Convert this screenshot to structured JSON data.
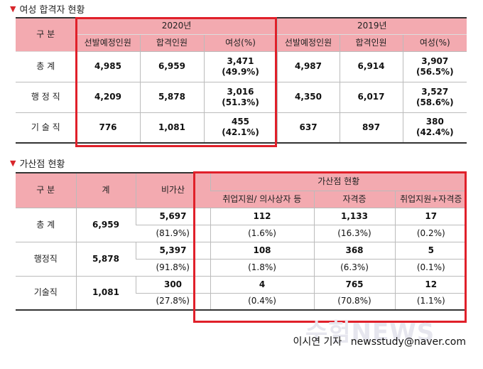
{
  "section1": {
    "title": "여성 합격자 현황",
    "col_group": "구  분",
    "year_2020": "2020년",
    "year_2019": "2019년",
    "sub_headers": [
      "선발예정인원",
      "합격인원",
      "여성(%)"
    ],
    "rows": [
      {
        "label": "총    계",
        "y2020": [
          "4,985",
          "6,959",
          "3,471",
          "(49.9%)"
        ],
        "y2019": [
          "4,987",
          "6,914",
          "3,907",
          "(56.5%)"
        ]
      },
      {
        "label": "행 정 직",
        "y2020": [
          "4,209",
          "5,878",
          "3,016",
          "(51.3%)"
        ],
        "y2019": [
          "4,350",
          "6,017",
          "3,527",
          "(58.6%)"
        ]
      },
      {
        "label": "기 술 직",
        "y2020": [
          "776",
          "1,081",
          "455",
          "(42.1%)"
        ],
        "y2019": [
          "637",
          "897",
          "380",
          "(42.4%)"
        ]
      }
    ]
  },
  "section2": {
    "title": "가산점 현황",
    "col_group": "구  분",
    "col_total": "계",
    "col_non": "비가산",
    "bonus_group": "가산점 현황",
    "bonus_headers": [
      "취업지원/ 의사상자 등",
      "자격증",
      "취업지원+자격증"
    ],
    "rows": [
      {
        "label": "총  계",
        "total": "6,959",
        "counts": [
          "5,697",
          "112",
          "1,133",
          "17"
        ],
        "pcts": [
          "(81.9%)",
          "(1.6%)",
          "(16.3%)",
          "(0.2%)"
        ]
      },
      {
        "label": "행정직",
        "total": "5,878",
        "counts": [
          "5,397",
          "108",
          "368",
          "5"
        ],
        "pcts": [
          "(91.8%)",
          "(1.8%)",
          "(6.3%)",
          "(0.1%)"
        ]
      },
      {
        "label": "기술직",
        "total": "1,081",
        "counts": [
          "300",
          "4",
          "765",
          "12"
        ],
        "pcts": [
          "(27.8%)",
          "(0.4%)",
          "(70.8%)",
          "(1.1%)"
        ]
      }
    ]
  },
  "byline": {
    "author": "이시연 기자",
    "email": "newsstudy@naver.com"
  },
  "watermark": "수험NEWS",
  "colors": {
    "header_bg": "#f3aab0",
    "highlight_border": "#e0202a",
    "triangle": "#d8262b"
  }
}
